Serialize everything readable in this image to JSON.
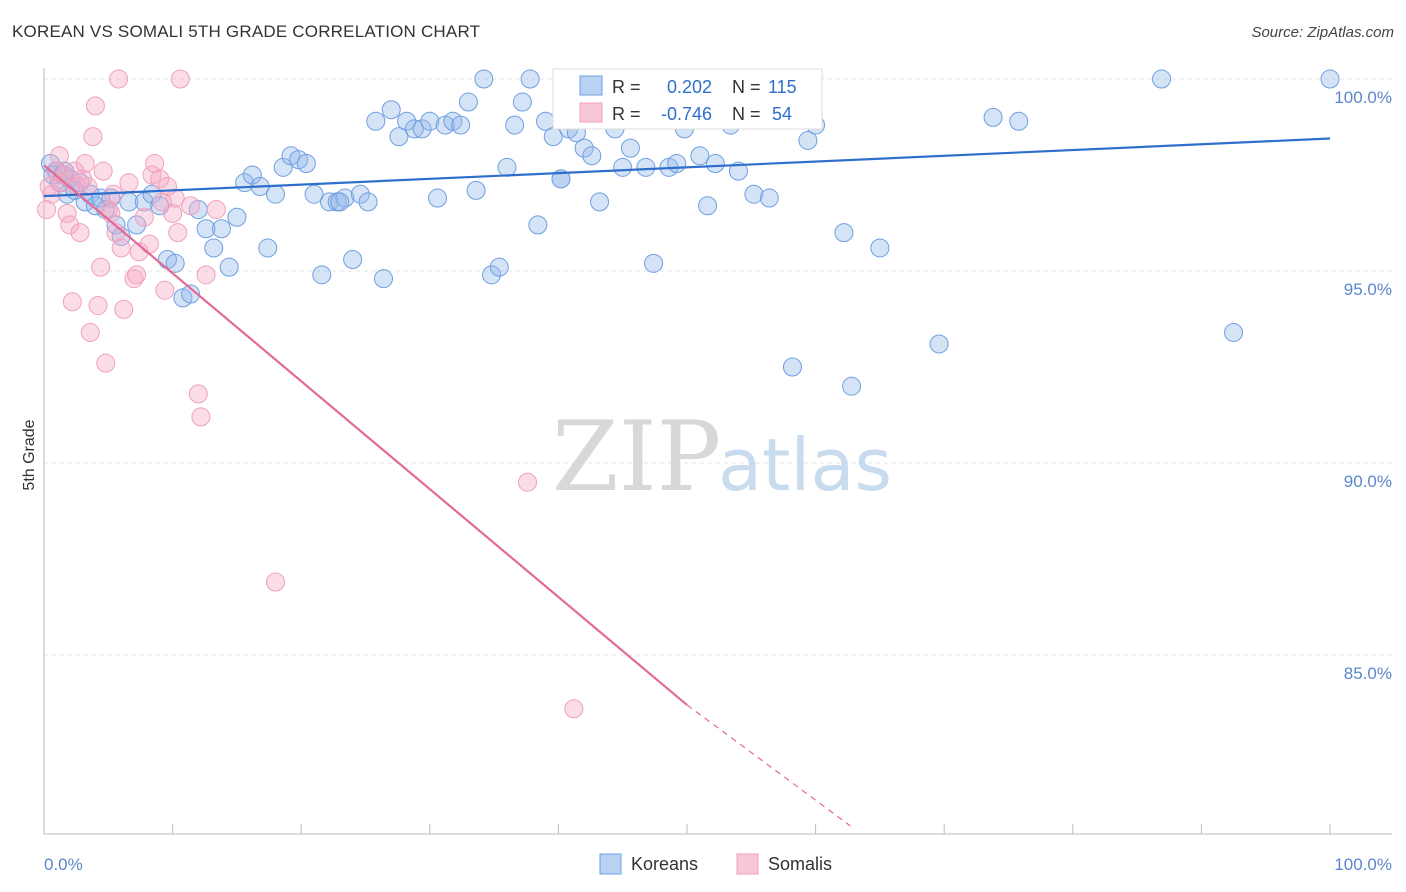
{
  "title": "KOREAN VS SOMALI 5TH GRADE CORRELATION CHART",
  "source": "Source: ZipAtlas.com",
  "colors": {
    "korean": "#6f9fe0",
    "korean_line": "#2f6fcc",
    "somali": "#f0a0bd",
    "somali_line": "#e46a96",
    "tick_text": "#5b86c9"
  },
  "watermark": {
    "zip": "ZIP",
    "atlas": "atlas"
  },
  "legend": {
    "korean": {
      "r_label": "R =",
      "r_value": "0.202",
      "n_label": "N =",
      "n_value": "115"
    },
    "somali": {
      "r_label": "R =",
      "r_value": "-0.746",
      "n_label": "N =",
      "n_value": "54"
    }
  },
  "bottom_legend": [
    "Koreans",
    "Somalis"
  ],
  "chart_data": {
    "type": "scatter",
    "title": "KOREAN VS SOMALI 5TH GRADE CORRELATION CHART",
    "xlabel": "",
    "ylabel": "5th Grade",
    "xlim": [
      0,
      100
    ],
    "ylim": [
      80.5,
      100.8
    ],
    "x_tick_labels": [
      "0.0%",
      "100.0%"
    ],
    "y_ticks": [
      100,
      95,
      90,
      85
    ],
    "y_tick_labels": [
      "100.0%",
      "95.0%",
      "90.0%",
      "85.0%"
    ],
    "grid": true,
    "legend_position": "top-center",
    "series": [
      {
        "name": "Koreans",
        "trend": {
          "x1": 0,
          "y1": 96.95,
          "x2": 100,
          "y2": 98.45
        },
        "points": [
          [
            0.5,
            97.8
          ],
          [
            0.7,
            97.5
          ],
          [
            1.0,
            97.6
          ],
          [
            1.2,
            97.3
          ],
          [
            1.5,
            97.5
          ],
          [
            1.8,
            97.0
          ],
          [
            2.0,
            97.4
          ],
          [
            2.4,
            97.1
          ],
          [
            2.8,
            97.3
          ],
          [
            3.2,
            96.8
          ],
          [
            3.6,
            97.0
          ],
          [
            4.0,
            96.7
          ],
          [
            4.4,
            96.9
          ],
          [
            4.8,
            96.6
          ],
          [
            5.2,
            96.9
          ],
          [
            5.6,
            96.2
          ],
          [
            6.0,
            95.9
          ],
          [
            6.6,
            96.8
          ],
          [
            7.2,
            96.2
          ],
          [
            7.8,
            96.8
          ],
          [
            8.4,
            97.0
          ],
          [
            9.0,
            96.7
          ],
          [
            9.6,
            95.3
          ],
          [
            10.2,
            95.2
          ],
          [
            10.8,
            94.3
          ],
          [
            11.4,
            94.4
          ],
          [
            12.0,
            96.6
          ],
          [
            12.6,
            96.1
          ],
          [
            13.2,
            95.6
          ],
          [
            13.8,
            96.1
          ],
          [
            14.4,
            95.1
          ],
          [
            15.0,
            96.4
          ],
          [
            15.6,
            97.3
          ],
          [
            16.2,
            97.5
          ],
          [
            16.8,
            97.2
          ],
          [
            17.4,
            95.6
          ],
          [
            18.0,
            97.0
          ],
          [
            18.6,
            97.7
          ],
          [
            19.2,
            98.0
          ],
          [
            19.8,
            97.9
          ],
          [
            20.4,
            97.8
          ],
          [
            21.0,
            97.0
          ],
          [
            21.6,
            94.9
          ],
          [
            22.2,
            96.8
          ],
          [
            22.8,
            96.8
          ],
          [
            23.4,
            96.9
          ],
          [
            24.0,
            95.3
          ],
          [
            24.6,
            97.0
          ],
          [
            25.2,
            96.8
          ],
          [
            25.8,
            98.9
          ],
          [
            26.4,
            94.8
          ],
          [
            27.0,
            99.2
          ],
          [
            27.6,
            98.5
          ],
          [
            28.2,
            98.9
          ],
          [
            28.8,
            98.7
          ],
          [
            29.4,
            98.7
          ],
          [
            30.0,
            98.9
          ],
          [
            30.6,
            96.9
          ],
          [
            31.2,
            98.8
          ],
          [
            31.8,
            98.9
          ],
          [
            32.4,
            98.8
          ],
          [
            33.0,
            99.4
          ],
          [
            33.6,
            97.1
          ],
          [
            34.2,
            100.0
          ],
          [
            34.8,
            94.9
          ],
          [
            35.4,
            95.1
          ],
          [
            36.0,
            97.7
          ],
          [
            36.6,
            98.8
          ],
          [
            37.2,
            99.4
          ],
          [
            37.8,
            100.0
          ],
          [
            38.4,
            96.2
          ],
          [
            39.0,
            98.9
          ],
          [
            39.6,
            98.5
          ],
          [
            40.2,
            97.4
          ],
          [
            40.8,
            98.7
          ],
          [
            41.4,
            98.6
          ],
          [
            42.0,
            98.2
          ],
          [
            42.6,
            98.0
          ],
          [
            43.2,
            96.8
          ],
          [
            43.8,
            100.0
          ],
          [
            44.4,
            98.7
          ],
          [
            45.0,
            97.7
          ],
          [
            45.6,
            98.2
          ],
          [
            46.2,
            99.9
          ],
          [
            46.8,
            97.7
          ],
          [
            47.4,
            95.2
          ],
          [
            48.0,
            99.7
          ],
          [
            48.6,
            97.7
          ],
          [
            49.2,
            97.8
          ],
          [
            49.8,
            98.7
          ],
          [
            50.4,
            99.9
          ],
          [
            51.0,
            98.0
          ],
          [
            51.6,
            96.7
          ],
          [
            52.2,
            97.8
          ],
          [
            52.8,
            99.9
          ],
          [
            53.4,
            98.8
          ],
          [
            54.0,
            97.6
          ],
          [
            54.6,
            99.6
          ],
          [
            55.2,
            97.0
          ],
          [
            56.4,
            96.9
          ],
          [
            58.2,
            92.5
          ],
          [
            59.4,
            98.4
          ],
          [
            60.0,
            98.8
          ],
          [
            62.2,
            96.0
          ],
          [
            62.8,
            92.0
          ],
          [
            65.0,
            95.6
          ],
          [
            69.6,
            93.1
          ],
          [
            73.8,
            99.0
          ],
          [
            75.8,
            98.9
          ],
          [
            86.9,
            100.0
          ],
          [
            92.5,
            93.4
          ],
          [
            100.0,
            100.0
          ],
          [
            1.6,
            97.6
          ],
          [
            23.0,
            96.8
          ],
          [
            40.2,
            97.4
          ]
        ]
      },
      {
        "name": "Somalis",
        "trend": {
          "x1": 0,
          "y1": 97.75,
          "x2": 50,
          "y2": 83.7,
          "dash_x2": 62.7,
          "dash_y2": 80.55
        },
        "points": [
          [
            0.2,
            96.6
          ],
          [
            0.4,
            97.2
          ],
          [
            0.6,
            97.0
          ],
          [
            0.9,
            97.6
          ],
          [
            1.2,
            98.0
          ],
          [
            1.4,
            97.3
          ],
          [
            1.6,
            97.5
          ],
          [
            1.8,
            96.5
          ],
          [
            2.0,
            96.2
          ],
          [
            2.2,
            94.2
          ],
          [
            2.4,
            97.6
          ],
          [
            2.6,
            97.2
          ],
          [
            2.8,
            96.0
          ],
          [
            3.0,
            97.4
          ],
          [
            3.2,
            97.8
          ],
          [
            3.4,
            97.2
          ],
          [
            3.6,
            93.4
          ],
          [
            3.8,
            98.5
          ],
          [
            4.0,
            99.3
          ],
          [
            4.2,
            94.1
          ],
          [
            4.4,
            95.1
          ],
          [
            4.6,
            97.6
          ],
          [
            4.8,
            92.6
          ],
          [
            5.0,
            96.6
          ],
          [
            5.2,
            96.5
          ],
          [
            5.4,
            97.0
          ],
          [
            5.6,
            96.0
          ],
          [
            5.8,
            100.0
          ],
          [
            6.0,
            95.6
          ],
          [
            6.2,
            94.0
          ],
          [
            6.6,
            97.3
          ],
          [
            7.0,
            94.8
          ],
          [
            7.2,
            94.9
          ],
          [
            7.4,
            95.5
          ],
          [
            7.8,
            96.4
          ],
          [
            8.2,
            95.7
          ],
          [
            8.4,
            97.5
          ],
          [
            8.6,
            97.8
          ],
          [
            9.0,
            97.4
          ],
          [
            9.2,
            96.8
          ],
          [
            9.4,
            94.5
          ],
          [
            9.6,
            97.2
          ],
          [
            10.0,
            96.5
          ],
          [
            10.2,
            96.9
          ],
          [
            10.4,
            96.0
          ],
          [
            11.4,
            96.7
          ],
          [
            12.0,
            91.8
          ],
          [
            12.2,
            91.2
          ],
          [
            12.6,
            94.9
          ],
          [
            13.4,
            96.6
          ],
          [
            18.0,
            86.9
          ],
          [
            37.6,
            89.5
          ],
          [
            41.2,
            83.6
          ],
          [
            10.6,
            100.0
          ]
        ]
      }
    ]
  }
}
